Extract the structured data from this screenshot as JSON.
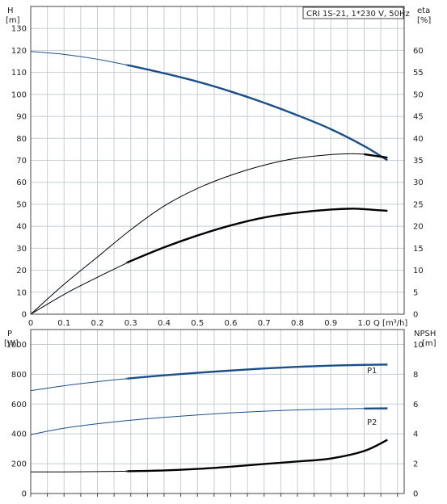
{
  "chart_data": [
    {
      "type": "line",
      "title": "CRI 1S-21, 1*230 V, 50Hz",
      "y_left": {
        "label": "H",
        "unit": "[m]",
        "range": [
          0,
          140
        ],
        "ticks": [
          0,
          10,
          20,
          30,
          40,
          50,
          60,
          70,
          80,
          90,
          100,
          110,
          120,
          130
        ]
      },
      "y_right": {
        "label": "eta",
        "unit": "[%]",
        "range": [
          0,
          70
        ],
        "ticks": [
          0,
          5,
          10,
          15,
          20,
          25,
          30,
          35,
          40,
          45,
          50,
          55,
          60
        ]
      },
      "x": {
        "label": "Q [m³/h]",
        "range": [
          0,
          1.12
        ],
        "ticks": [
          0,
          0.1,
          0.2,
          0.3,
          0.4,
          0.5,
          0.6,
          0.7,
          0.8,
          0.9,
          1.0
        ],
        "tick_labels": [
          "0",
          "0.1",
          "0.2",
          "0.3",
          "0.4",
          "0.5",
          "0.6",
          "0.7",
          "0.8",
          "0.9",
          "1.0"
        ]
      },
      "grid": true,
      "series": [
        {
          "kind": "head",
          "axis": "left",
          "color": "#1a4f8a",
          "x": [
            0,
            0.1,
            0.2,
            0.3,
            0.4,
            0.5,
            0.6,
            0.7,
            0.8,
            0.9,
            1.0,
            1.07
          ],
          "y": [
            119.5,
            118.2,
            116.0,
            113.0,
            109.6,
            105.8,
            101.3,
            96.2,
            90.5,
            84.2,
            76.5,
            70.0
          ],
          "bold_from": 0.29
        },
        {
          "kind": "efficiency-total",
          "axis": "right",
          "color": "#000000",
          "x": [
            0,
            0.1,
            0.2,
            0.3,
            0.4,
            0.5,
            0.6,
            0.7,
            0.8,
            0.9,
            0.96,
            1.0,
            1.07
          ],
          "y": [
            0,
            6.8,
            13.0,
            19.2,
            24.6,
            28.6,
            31.6,
            33.9,
            35.5,
            36.3,
            36.5,
            36.4,
            35.6
          ],
          "bold_from": 1.0
        },
        {
          "kind": "efficiency-hydraulic",
          "axis": "right",
          "color": "#000000",
          "x": [
            0,
            0.1,
            0.2,
            0.3,
            0.4,
            0.5,
            0.6,
            0.7,
            0.8,
            0.9,
            0.96,
            1.0,
            1.07
          ],
          "y": [
            0,
            4.5,
            8.4,
            12.1,
            15.2,
            17.9,
            20.2,
            22.0,
            23.1,
            23.8,
            24.0,
            23.9,
            23.5
          ],
          "bold_from": 0.29
        }
      ]
    },
    {
      "type": "line",
      "y_left": {
        "label": "P",
        "unit": "[W]",
        "range": [
          0,
          1100
        ],
        "ticks": [
          0,
          200,
          400,
          600,
          800,
          1000
        ]
      },
      "y_right": {
        "label": "NPSH",
        "unit": "[m]",
        "range": [
          0,
          11
        ],
        "ticks": [
          0,
          2,
          4,
          6,
          8,
          10
        ]
      },
      "x": {
        "range": [
          0,
          1.12
        ],
        "ticks": [
          0,
          0.1,
          0.2,
          0.3,
          0.4,
          0.5,
          0.6,
          0.7,
          0.8,
          0.9,
          1.0
        ]
      },
      "grid": true,
      "series": [
        {
          "name": "P1",
          "axis": "left",
          "color": "#1a4f8a",
          "x": [
            0,
            0.1,
            0.2,
            0.3,
            0.4,
            0.5,
            0.6,
            0.7,
            0.8,
            0.9,
            1.0,
            1.07
          ],
          "y": [
            690,
            723,
            750,
            773,
            793,
            810,
            825,
            839,
            850,
            858,
            863,
            865
          ],
          "bold_from": 0.29
        },
        {
          "name": "P2",
          "axis": "left",
          "color": "#1a4f8a",
          "x": [
            0,
            0.1,
            0.2,
            0.3,
            0.4,
            0.5,
            0.6,
            0.7,
            0.8,
            0.9,
            1.0,
            1.07
          ],
          "y": [
            395,
            438,
            468,
            492,
            511,
            527,
            541,
            552,
            561,
            567,
            570,
            571
          ],
          "bold_from": 1.0
        },
        {
          "kind": "npsh",
          "axis": "right",
          "color": "#000000",
          "x": [
            0,
            0.1,
            0.2,
            0.3,
            0.4,
            0.5,
            0.6,
            0.7,
            0.8,
            0.9,
            1.0,
            1.07
          ],
          "y": [
            1.45,
            1.45,
            1.47,
            1.5,
            1.55,
            1.65,
            1.8,
            1.98,
            2.15,
            2.35,
            2.85,
            3.6
          ],
          "bold_from": 0.29
        }
      ]
    }
  ]
}
